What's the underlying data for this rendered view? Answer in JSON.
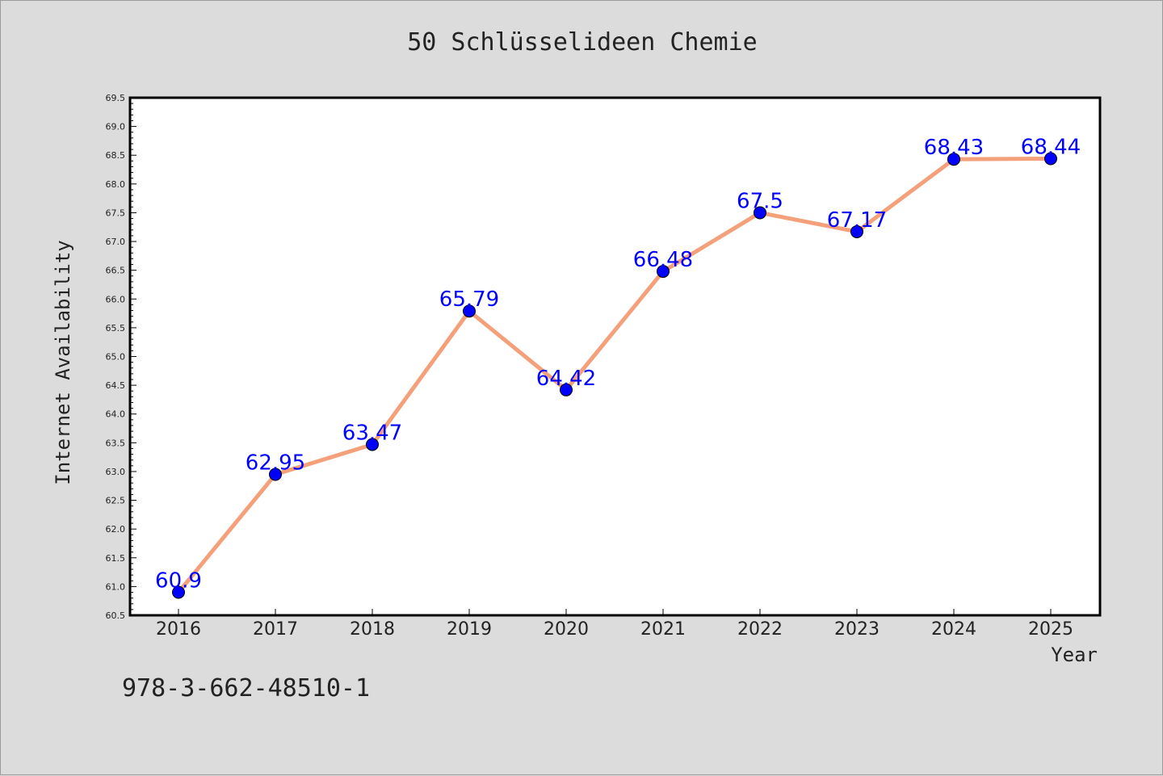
{
  "title": "50 Schlüsselideen Chemie",
  "footer": "978-3-662-48510-1",
  "chart_data": {
    "type": "line",
    "title": "50 Schlüsselideen Chemie",
    "xlabel": "Year",
    "ylabel": "Internet Availability",
    "x": [
      "2016",
      "2017",
      "2018",
      "2019",
      "2020",
      "2021",
      "2022",
      "2023",
      "2024",
      "2025"
    ],
    "series": [
      {
        "values": [
          60.9,
          62.95,
          63.47,
          65.79,
          64.42,
          66.48,
          67.5,
          67.17,
          68.43,
          68.44
        ],
        "data_labels": [
          "60.9",
          "62.95",
          "63.47",
          "65.79",
          "64.42",
          "66.48",
          "67.5",
          "67.17",
          "68.43",
          "68.44"
        ]
      }
    ],
    "ylim": [
      60.5,
      69.5
    ],
    "yticks": [
      "60.5",
      "61.0",
      "61.5",
      "62.0",
      "62.5",
      "63.0",
      "63.5",
      "64.0",
      "64.5",
      "65.0",
      "65.5",
      "66.0",
      "66.5",
      "67.0",
      "67.5",
      "68.0",
      "68.5",
      "69.0",
      "69.5"
    ],
    "grid": false,
    "colors": {
      "line": "#f4a07a",
      "marker": "#0000ff",
      "label": "#0000ff",
      "background": "#dcdcdc",
      "plot_area": "#ffffff"
    }
  }
}
